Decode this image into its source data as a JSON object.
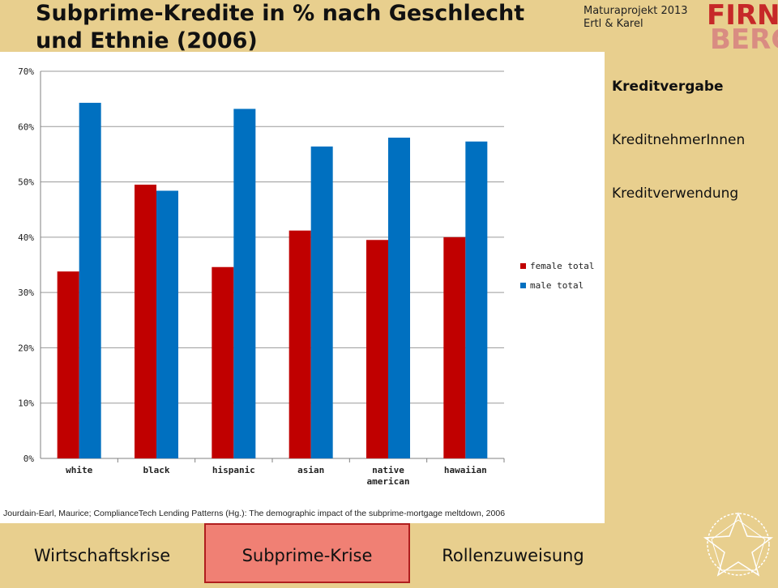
{
  "title": "Subprime-Kredite in % nach Geschlecht und Ethnie (2006)",
  "project": {
    "line1": "Maturaprojekt 2013",
    "line2": "Ertl & Karel"
  },
  "logo": {
    "text_top": "FIRN",
    "text_bottom": "BERG",
    "color": "#c62828"
  },
  "side_nav": {
    "items": [
      {
        "label": "Kreditvergabe",
        "active": true
      },
      {
        "label": "KreditnehmerInnen",
        "active": false
      },
      {
        "label": "Kreditverwendung",
        "active": false
      }
    ]
  },
  "bottom_nav": {
    "tabs": [
      {
        "label": "Wirtschaftskrise",
        "active": false
      },
      {
        "label": "Subprime-Krise",
        "active": true
      },
      {
        "label": "Rollenzuweisung",
        "active": false
      }
    ]
  },
  "source": "Jourdain-Earl, Maurice; ComplianceTech Lending Patterns (Hg.): The demographic impact of the subprime-mortgage meltdown, 2006",
  "colors": {
    "female": "#c00000",
    "male": "#0070c0",
    "background": "#e8cf8e",
    "active_tab": "#f08074"
  },
  "chart_data": {
    "type": "bar",
    "categories": [
      "white",
      "black",
      "hispanic",
      "asian",
      "native american",
      "hawaiian"
    ],
    "category_lines": [
      [
        "white"
      ],
      [
        "black"
      ],
      [
        "hispanic"
      ],
      [
        "asian"
      ],
      [
        "native",
        "american"
      ],
      [
        "hawaiian"
      ]
    ],
    "series": [
      {
        "name": "female total",
        "values": [
          33.8,
          49.5,
          34.6,
          41.2,
          39.5,
          40.0
        ]
      },
      {
        "name": "male total",
        "values": [
          64.3,
          48.4,
          63.2,
          56.4,
          58.0,
          57.3
        ]
      }
    ],
    "ylim": [
      0,
      70
    ],
    "yticks": [
      "0%",
      "10%",
      "20%",
      "30%",
      "40%",
      "50%",
      "60%",
      "70%"
    ],
    "grid": true,
    "legend": "right"
  }
}
